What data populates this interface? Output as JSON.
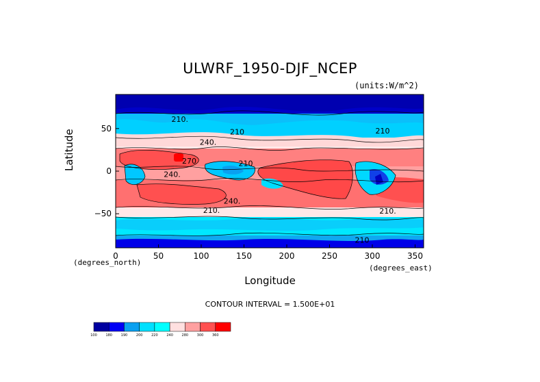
{
  "chart_data": {
    "type": "heatmap",
    "title": "ULWRF_1950-DJF_NCEP",
    "units": "(units:W/m^2)",
    "xlabel": "Longitude",
    "ylabel": "Latitude",
    "x_unit_left": "(degrees_north)",
    "x_unit_right": "(degrees_east)",
    "xlim": [
      0,
      360
    ],
    "ylim": [
      -90,
      90
    ],
    "xticks": [
      0,
      50,
      100,
      150,
      200,
      250,
      300,
      350
    ],
    "yticks": [
      50,
      0,
      -50
    ],
    "contour_interval": "CONTOUR INTERVAL = 1.500E+01",
    "contour_labels": [
      {
        "text": "210.",
        "lon": 75,
        "lat": 58
      },
      {
        "text": "240.",
        "lon": 108,
        "lat": 31
      },
      {
        "text": "210",
        "lon": 142,
        "lat": 43
      },
      {
        "text": "210",
        "lon": 312,
        "lat": 44
      },
      {
        "text": "270",
        "lon": 86,
        "lat": 9
      },
      {
        "text": "240.",
        "lon": 66,
        "lat": -7
      },
      {
        "text": "210",
        "lon": 152,
        "lat": 6
      },
      {
        "text": "240.",
        "lon": 136,
        "lat": -38
      },
      {
        "text": "210.",
        "lon": 112,
        "lat": -49
      },
      {
        "text": "210.",
        "lon": 318,
        "lat": -50
      },
      {
        "text": "210",
        "lon": 288,
        "lat": -84
      }
    ],
    "colorbar": {
      "levels": [
        "100",
        "180",
        "190",
        "200",
        "220",
        "240",
        "280",
        "300",
        "360"
      ],
      "colors": [
        "#0000a0",
        "#0000f5",
        "#0aa0f0",
        "#00e0ff",
        "#00ffff",
        "#ffe0e0",
        "#ffa0a0",
        "#ff5050",
        "#ff0000"
      ]
    }
  }
}
